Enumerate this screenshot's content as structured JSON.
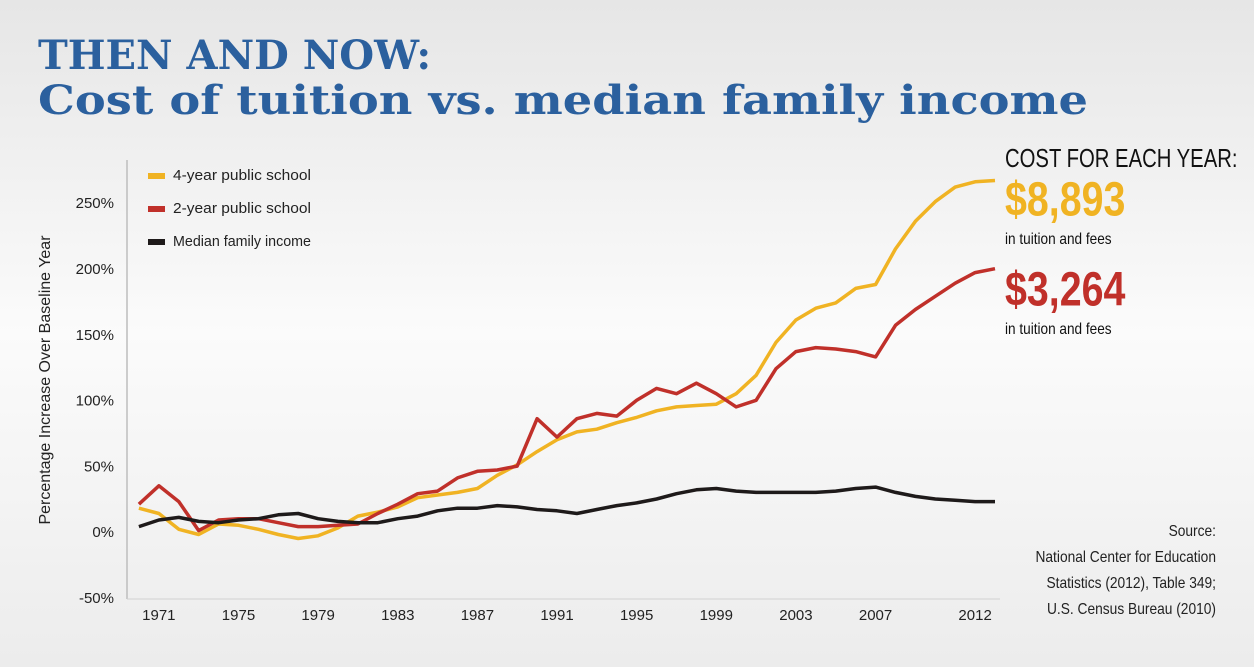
{
  "chart_data": {
    "type": "line",
    "title": "THEN AND NOW:",
    "subtitle": "Cost of tuition vs. median family income",
    "y_label": "Percentage Increase Over Baseline Year",
    "x": [
      1970,
      1971,
      1972,
      1973,
      1974,
      1975,
      1976,
      1977,
      1978,
      1979,
      1980,
      1981,
      1982,
      1983,
      1984,
      1985,
      1986,
      1987,
      1988,
      1989,
      1990,
      1991,
      1992,
      1993,
      1994,
      1995,
      1996,
      1997,
      1998,
      1999,
      2000,
      2001,
      2002,
      2003,
      2004,
      2005,
      2006,
      2007,
      2008,
      2009,
      2010,
      2011,
      2012,
      2013
    ],
    "series": [
      {
        "name": "4-year public school",
        "color": "#f0b323",
        "values": [
          19,
          15,
          3,
          -1,
          7,
          6,
          3,
          -1,
          -4,
          -2,
          4,
          13,
          16,
          20,
          27,
          29,
          31,
          34,
          44,
          52,
          62,
          71,
          77,
          79,
          84,
          88,
          93,
          96,
          97,
          98,
          106,
          120,
          145,
          162,
          171,
          175,
          186,
          189,
          216,
          237,
          252,
          263,
          267,
          268
        ]
      },
      {
        "name": "2-year public school",
        "color": "#c0302a",
        "values": [
          22,
          36,
          24,
          2,
          10,
          11,
          11,
          8,
          5,
          5,
          6,
          7,
          15,
          22,
          30,
          32,
          42,
          47,
          48,
          51,
          87,
          73,
          87,
          91,
          89,
          101,
          110,
          106,
          114,
          106,
          96,
          101,
          125,
          138,
          141,
          140,
          138,
          134,
          158,
          170,
          180,
          190,
          198,
          201
        ]
      },
      {
        "name": "Median family income",
        "color": "#1e1a1a",
        "values": [
          5,
          10,
          12,
          9,
          8,
          10,
          11,
          14,
          15,
          11,
          9,
          8,
          8,
          11,
          13,
          17,
          19,
          19,
          21,
          20,
          18,
          17,
          15,
          18,
          21,
          23,
          26,
          30,
          33,
          34,
          32,
          31,
          31,
          31,
          31,
          32,
          34,
          35,
          31,
          28,
          26,
          25,
          24,
          24
        ]
      }
    ],
    "xlim": [
      1969.4,
      2013.2
    ],
    "xticks": [
      1971,
      1975,
      1979,
      1983,
      1987,
      1991,
      1995,
      1999,
      2003,
      2007,
      2012
    ],
    "ylim": [
      -50,
      280
    ],
    "yticks": [
      {
        "value": -50,
        "label": "-50%"
      },
      {
        "value": 0,
        "label": "0%"
      },
      {
        "value": 50,
        "label": "50%"
      },
      {
        "value": 100,
        "label": "100%"
      },
      {
        "value": 150,
        "label": "150%"
      },
      {
        "value": 200,
        "label": "200%"
      },
      {
        "value": 250,
        "label": "250%"
      }
    ],
    "grid": false,
    "legend": "upper left",
    "annotations": [
      {
        "text": "COST FOR EACH YEAR:",
        "color": "#111111"
      },
      {
        "text": "$8,893",
        "color": "#f0b323"
      },
      {
        "text": "in tuition and fees",
        "color": "#111111"
      },
      {
        "text": "$3,264",
        "color": "#c0302a"
      },
      {
        "text": "in tuition and fees",
        "color": "#111111"
      }
    ],
    "source": [
      "Source:",
      "National Center for Education",
      "Statistics (2012), Table 349;",
      "U.S. Census Bureau (2010)"
    ]
  }
}
